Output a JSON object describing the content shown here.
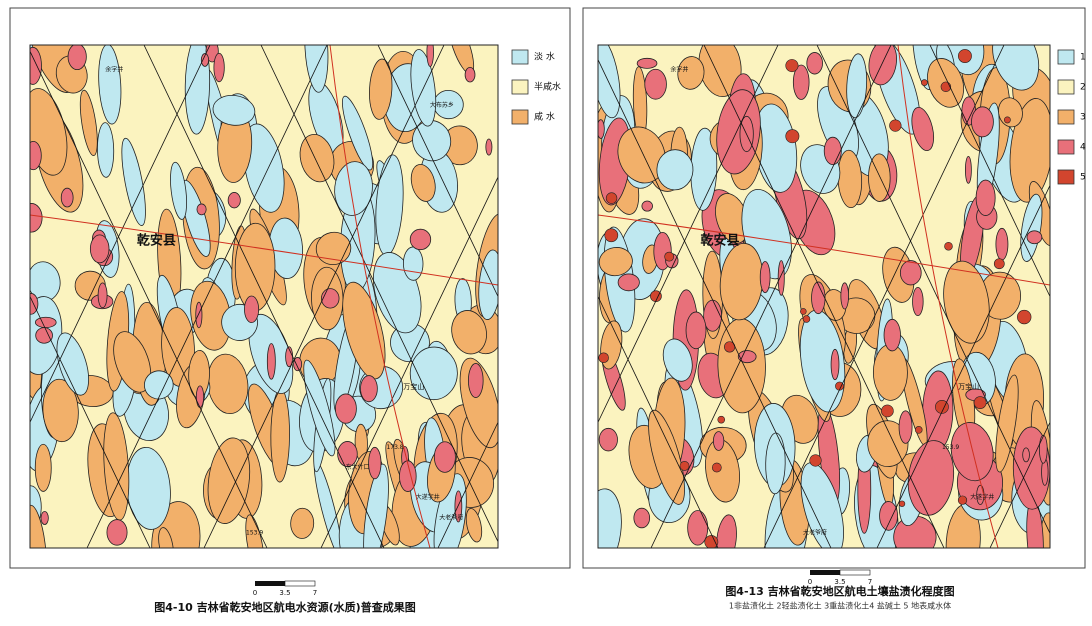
{
  "maps": [
    {
      "title": "图4-10 吉林省乾安地区航电水资源(水质)普查成果图",
      "scale": [
        "0",
        "3.5",
        "7"
      ],
      "legend": [
        {
          "label": "淡 水",
          "color": "#bfe8f0"
        },
        {
          "label": "半咸水",
          "color": "#fbf3bf"
        },
        {
          "label": "咸 水",
          "color": "#f2b06a"
        }
      ],
      "accent": "#e8707a",
      "places": [
        "乾安县",
        "余字井",
        "大遂字井",
        "万宝山",
        "153.9",
        "173.8",
        "东大什口",
        "大布苏乡",
        "大老爷府"
      ]
    },
    {
      "title": "图4-13 吉林省乾安地区航电土壤盐渍化程度图",
      "subtitle": "1非盐渍化土 2轻盐渍化土 3重盐渍化土4 盐碱土 5 地表咸水体",
      "scale": [
        "0",
        "3.5",
        "7"
      ],
      "legend": [
        {
          "label": "1",
          "color": "#bfe8f0"
        },
        {
          "label": "2",
          "color": "#fbf3bf"
        },
        {
          "label": "3",
          "color": "#f2b06a"
        },
        {
          "label": "4",
          "color": "#e8707a"
        },
        {
          "label": "5",
          "color": "#d2452e"
        }
      ],
      "places": [
        "乾安县",
        "余字井",
        "大遂字井",
        "万宝山",
        "大老爷府",
        "153.9"
      ]
    }
  ]
}
